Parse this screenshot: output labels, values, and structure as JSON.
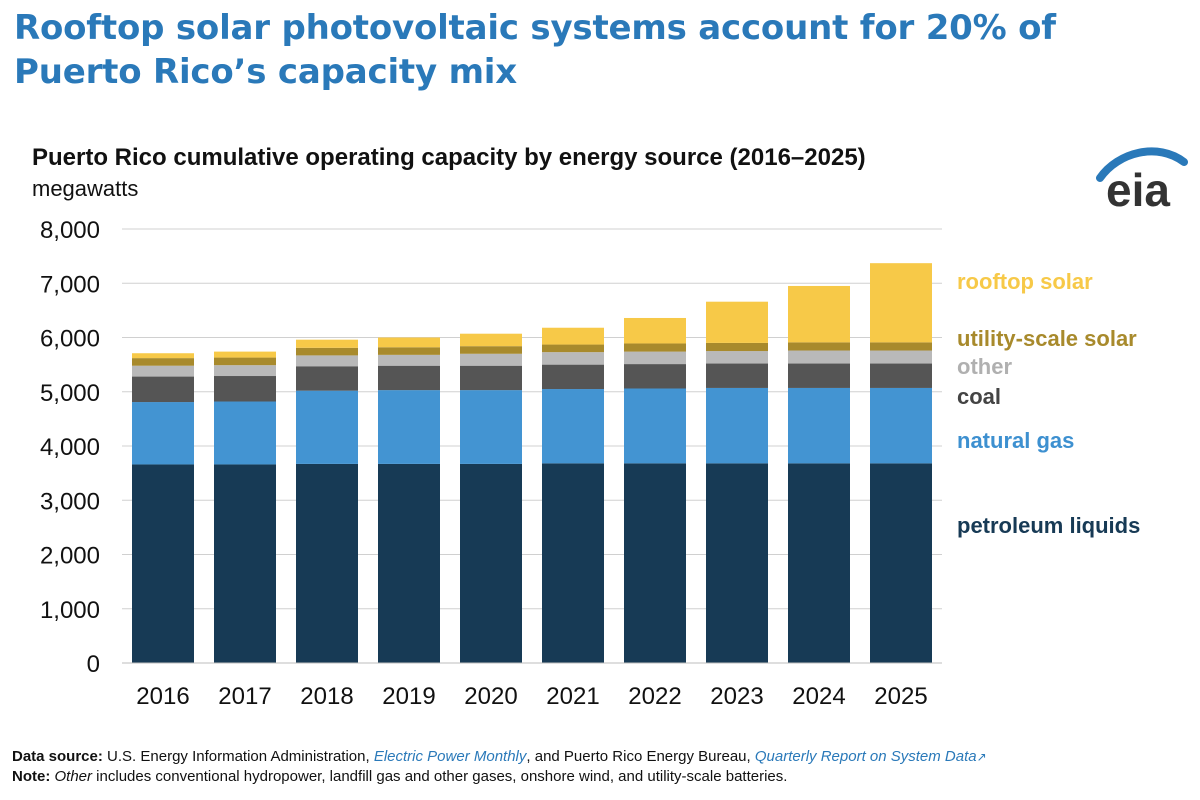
{
  "headline": "Rooftop solar photovoltaic systems account for 20% of Puerto Rico’s capacity mix",
  "logo": {
    "text": "eia",
    "colors": {
      "arc": "#2a79b9",
      "text": "#333333"
    }
  },
  "footer": {
    "source_label": "Data source:",
    "source_text_1": " U.S. Energy Information Administration, ",
    "source_link_1": "Electric Power Monthly",
    "source_text_2": ", and Puerto Rico Energy Bureau, ",
    "source_link_2": "Quarterly Report on System Data",
    "external_link_glyph": "↗",
    "note_label": "Note:",
    "note_italic": "Other",
    "note_text": " includes conventional hydropower, landfill gas and other gases, onshore wind, and utility-scale batteries."
  },
  "chart_data": {
    "type": "bar",
    "stacked": true,
    "title": "Puerto Rico cumulative operating capacity by energy source (2016–2025)",
    "ylabel": "megawatts",
    "xlabel": "",
    "ylim": [
      0,
      8000
    ],
    "yticks": [
      0,
      1000,
      2000,
      3000,
      4000,
      5000,
      6000,
      7000,
      8000
    ],
    "ytick_labels": [
      "0",
      "1,000",
      "2,000",
      "3,000",
      "4,000",
      "5,000",
      "6,000",
      "7,000",
      "8,000"
    ],
    "grid": true,
    "legend": "right (inline labels)",
    "categories": [
      "2016",
      "2017",
      "2018",
      "2019",
      "2020",
      "2021",
      "2022",
      "2023",
      "2024",
      "2025"
    ],
    "series": [
      {
        "name": "petroleum liquids",
        "color": "#173a55",
        "values": [
          3660,
          3660,
          3670,
          3670,
          3670,
          3680,
          3680,
          3680,
          3680,
          3680
        ]
      },
      {
        "name": "natural gas",
        "color": "#4394d2",
        "values": [
          1150,
          1160,
          1350,
          1360,
          1360,
          1370,
          1380,
          1390,
          1390,
          1390
        ]
      },
      {
        "name": "coal",
        "color": "#555555",
        "values": [
          470,
          470,
          450,
          450,
          450,
          450,
          450,
          450,
          450,
          450
        ]
      },
      {
        "name": "other",
        "color": "#b9b9b9",
        "values": [
          200,
          200,
          200,
          200,
          220,
          230,
          230,
          230,
          240,
          240
        ]
      },
      {
        "name": "utility-scale solar",
        "color": "#a88a2c",
        "values": [
          140,
          140,
          140,
          140,
          140,
          140,
          150,
          150,
          150,
          150
        ]
      },
      {
        "name": "rooftop solar",
        "color": "#f7c948",
        "values": [
          90,
          110,
          150,
          180,
          230,
          310,
          470,
          760,
          1040,
          1460
        ]
      }
    ]
  }
}
